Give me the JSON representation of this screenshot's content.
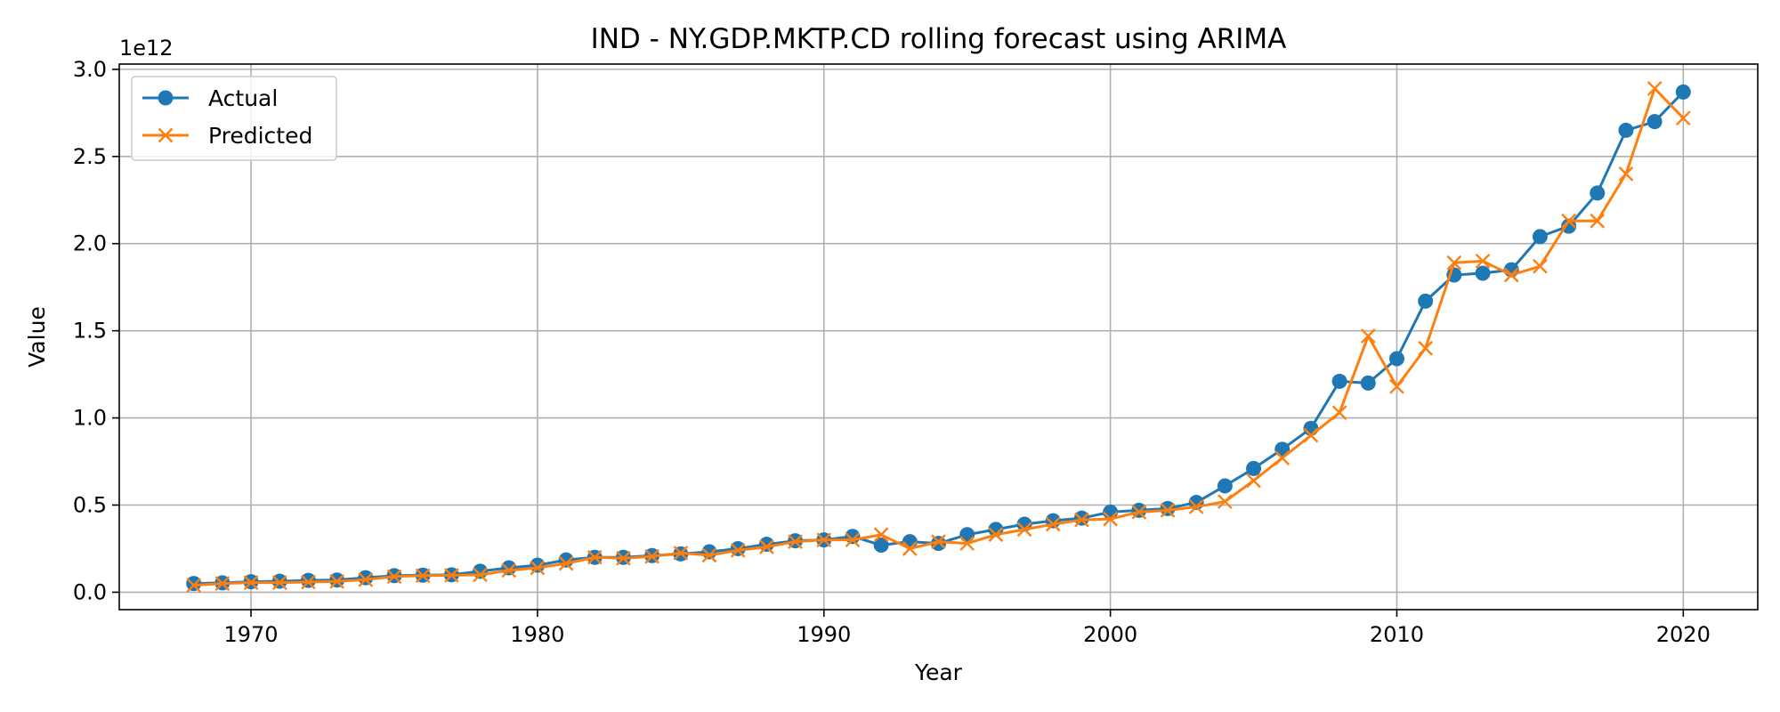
{
  "chart_data": {
    "type": "line",
    "title": "IND - NY.GDP.MKTP.CD rolling forecast using ARIMA",
    "xlabel": "Year",
    "ylabel": "Value",
    "y_multiplier_label": "1e12",
    "xlim": [
      1965.4,
      2022.6
    ],
    "ylim": [
      -0.1,
      3.03
    ],
    "y_units": "1e12",
    "x_ticks": [
      1970,
      1980,
      1990,
      2000,
      2010,
      2020
    ],
    "x_tick_labels": [
      "1970",
      "1980",
      "1990",
      "2000",
      "2010",
      "2020"
    ],
    "y_ticks": [
      0.0,
      0.5,
      1.0,
      1.5,
      2.0,
      2.5,
      3.0
    ],
    "y_tick_labels": [
      "0.0",
      "0.5",
      "1.0",
      "1.5",
      "2.0",
      "2.5",
      "3.0"
    ],
    "grid": true,
    "legend_position": "top-left",
    "x": [
      1968,
      1969,
      1970,
      1971,
      1972,
      1973,
      1974,
      1975,
      1976,
      1977,
      1978,
      1979,
      1980,
      1981,
      1982,
      1983,
      1984,
      1985,
      1986,
      1987,
      1988,
      1989,
      1990,
      1991,
      1992,
      1993,
      1994,
      1995,
      1996,
      1997,
      1998,
      1999,
      2000,
      2001,
      2002,
      2003,
      2004,
      2005,
      2006,
      2007,
      2008,
      2009,
      2010,
      2011,
      2012,
      2013,
      2014,
      2015,
      2016,
      2017,
      2018,
      2019,
      2020
    ],
    "series": [
      {
        "name": "Actual",
        "color": "#1f77b4",
        "marker": "circle",
        "values": [
          0.05,
          0.054,
          0.06,
          0.063,
          0.068,
          0.07,
          0.083,
          0.095,
          0.098,
          0.1,
          0.12,
          0.14,
          0.155,
          0.185,
          0.2,
          0.2,
          0.21,
          0.22,
          0.232,
          0.25,
          0.275,
          0.295,
          0.3,
          0.32,
          0.27,
          0.29,
          0.28,
          0.33,
          0.36,
          0.39,
          0.41,
          0.425,
          0.46,
          0.47,
          0.48,
          0.515,
          0.61,
          0.71,
          0.82,
          0.94,
          1.21,
          1.2,
          1.34,
          1.67,
          1.82,
          1.83,
          1.85,
          2.04,
          2.1,
          2.29,
          2.65,
          2.7,
          2.87
        ]
      },
      {
        "name": "Predicted",
        "color": "#ff7f0e",
        "marker": "x",
        "values": [
          0.04,
          0.05,
          0.055,
          0.055,
          0.058,
          0.062,
          0.072,
          0.09,
          0.095,
          0.097,
          0.1,
          0.125,
          0.14,
          0.165,
          0.2,
          0.195,
          0.205,
          0.225,
          0.212,
          0.24,
          0.26,
          0.29,
          0.3,
          0.3,
          0.33,
          0.25,
          0.29,
          0.28,
          0.33,
          0.36,
          0.39,
          0.415,
          0.42,
          0.46,
          0.47,
          0.49,
          0.52,
          0.64,
          0.77,
          0.9,
          1.03,
          1.47,
          1.18,
          1.4,
          1.89,
          1.9,
          1.82,
          1.87,
          2.13,
          2.13,
          2.4,
          2.89,
          2.72
        ]
      }
    ]
  }
}
